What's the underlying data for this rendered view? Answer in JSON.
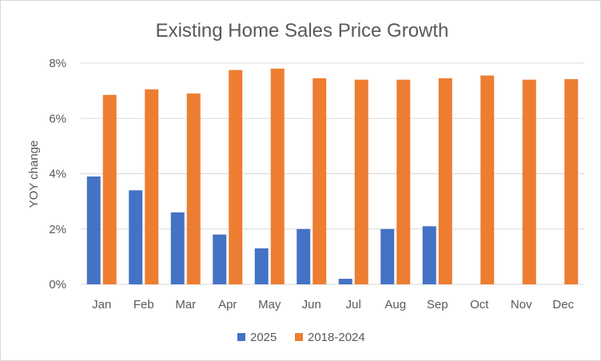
{
  "chart_data": {
    "type": "bar",
    "title": "Existing Home Sales Price Growth",
    "xlabel": "",
    "ylabel": "YOY change",
    "ylim": [
      0,
      8
    ],
    "yticks": [
      0,
      2,
      4,
      6,
      8
    ],
    "ytick_labels": [
      "0%",
      "2%",
      "4%",
      "6%",
      "8%"
    ],
    "grid": true,
    "legend_position": "bottom",
    "categories": [
      "Jan",
      "Feb",
      "Mar",
      "Apr",
      "May",
      "Jun",
      "Jul",
      "Aug",
      "Sep",
      "Oct",
      "Nov",
      "Dec"
    ],
    "series": [
      {
        "name": "2025",
        "color": "#4472c4",
        "values": [
          3.9,
          3.4,
          2.6,
          1.8,
          1.3,
          2.0,
          0.2,
          2.0,
          2.1,
          null,
          null,
          null
        ]
      },
      {
        "name": "2018-2024",
        "color": "#ed7d31",
        "values": [
          6.85,
          7.05,
          6.9,
          7.75,
          7.8,
          7.45,
          7.4,
          7.4,
          7.45,
          7.55,
          7.4,
          7.42
        ]
      }
    ]
  }
}
